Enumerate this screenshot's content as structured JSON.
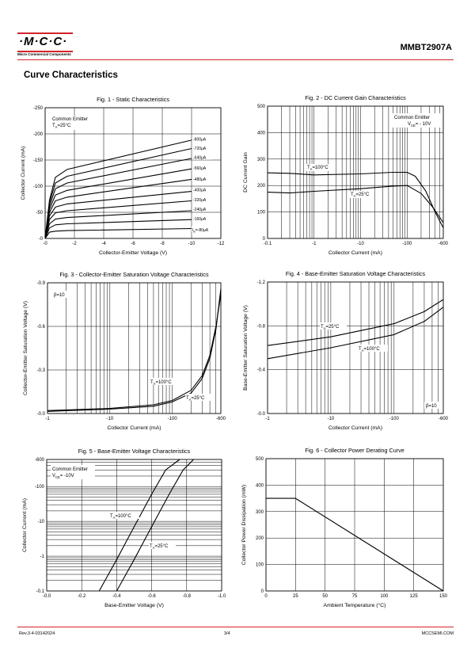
{
  "header": {
    "logo_text": "·M·C·C·",
    "logo_sub": "Micro Commercial Components",
    "part_number": "MMBT2907A",
    "brand_color": "#d2232a"
  },
  "section_title": "Curve Characteristics",
  "footer": {
    "rev": "Rev.3-4-03142024",
    "page": "3/4",
    "site": "MCCSEMI.COM"
  },
  "chart_data": [
    {
      "id": "fig1",
      "type": "line",
      "title": "Fig. 1 - Static Characteristics",
      "xlabel": "Collector-Emitter Voltage (V)",
      "ylabel": "Collector Current (mA)",
      "xlim": [
        0,
        -12
      ],
      "ylim": [
        0,
        -250
      ],
      "xticks": [
        "-0",
        "-2",
        "-4",
        "-6",
        "-8",
        "-10",
        "-12"
      ],
      "xtick_values": [
        0,
        -2,
        -4,
        -6,
        -8,
        -10,
        -12
      ],
      "yticks": [
        "-0",
        "-50",
        "-100",
        "-150",
        "-200",
        "-250"
      ],
      "ytick_values": [
        0,
        -50,
        -100,
        -150,
        -200,
        -250
      ],
      "annotations": [
        "Common Emitter",
        "T",
        "A",
        "=25°C"
      ],
      "series": [
        {
          "name": "I_B=-80μA",
          "x": [
            0,
            -0.3,
            -0.7,
            -1.5,
            -10
          ],
          "y": [
            0,
            -12,
            -14,
            -15,
            -19
          ]
        },
        {
          "name": "-160μA",
          "x": [
            0,
            -0.3,
            -0.7,
            -1.5,
            -10
          ],
          "y": [
            0,
            -20,
            -26,
            -28,
            -36
          ]
        },
        {
          "name": "-240μA",
          "x": [
            0,
            -0.3,
            -0.7,
            -1.5,
            -10
          ],
          "y": [
            0,
            -28,
            -37,
            -40,
            -53
          ]
        },
        {
          "name": "-320μA",
          "x": [
            0,
            -0.3,
            -0.7,
            -1.5,
            -10
          ],
          "y": [
            0,
            -36,
            -49,
            -53,
            -72
          ]
        },
        {
          "name": "-400μA",
          "x": [
            0,
            -0.3,
            -0.7,
            -1.5,
            -10
          ],
          "y": [
            0,
            -43,
            -60,
            -66,
            -90
          ]
        },
        {
          "name": "-480μA",
          "x": [
            0,
            -0.3,
            -0.7,
            -1.5,
            -10
          ],
          "y": [
            0,
            -50,
            -72,
            -79,
            -113
          ]
        },
        {
          "name": "-560μA",
          "x": [
            0,
            -0.3,
            -0.7,
            -1.5,
            -10
          ],
          "y": [
            0,
            -56,
            -83,
            -92,
            -133
          ]
        },
        {
          "name": "-640μA",
          "x": [
            0,
            -0.3,
            -0.7,
            -1.5,
            -10
          ],
          "y": [
            0,
            -62,
            -95,
            -106,
            -153
          ]
        },
        {
          "name": "-720μA",
          "x": [
            0,
            -0.3,
            -0.7,
            -1.5,
            -10
          ],
          "y": [
            0,
            -68,
            -106,
            -119,
            -172
          ]
        },
        {
          "name": "-800μA",
          "x": [
            0,
            -0.3,
            -0.7,
            -1.5,
            -10
          ],
          "y": [
            0,
            -73,
            -117,
            -132,
            -188
          ]
        }
      ],
      "legend_labels": [
        "-800μA",
        "-720μA",
        "-640μA",
        "-560μA",
        "-480μA",
        "-400μA",
        "-320μA",
        "-240μA",
        "-160μA",
        "I",
        "B",
        "=-80μA"
      ]
    },
    {
      "id": "fig2",
      "type": "line",
      "title": "Fig. 2 - DC Current Gain Characteristics",
      "xlabel": "Collector Current (mA)",
      "ylabel": "DC Current Gain",
      "xscale": "log",
      "xlim": [
        -0.1,
        -600
      ],
      "ylim": [
        0,
        500
      ],
      "xticks": [
        "-0.1",
        "-1",
        "-10",
        "-100",
        "-600"
      ],
      "xtick_values": [
        0.1,
        1,
        10,
        100,
        600
      ],
      "yticks": [
        "0",
        "100",
        "200",
        "300",
        "400",
        "500"
      ],
      "ytick_values": [
        0,
        100,
        200,
        300,
        400,
        500
      ],
      "annotations": [
        "Common Emitter",
        "V",
        "CE",
        "= - 10V"
      ],
      "series": [
        {
          "name": "T_A=100°C",
          "x": [
            0.1,
            0.3,
            1,
            10,
            50,
            100,
            150,
            250,
            400,
            600
          ],
          "y": [
            248,
            246,
            240,
            244,
            250,
            250,
            235,
            180,
            100,
            40
          ]
        },
        {
          "name": "T_A=25°C",
          "x": [
            0.1,
            0.3,
            1,
            10,
            50,
            100,
            200,
            350,
            600
          ],
          "y": [
            175,
            172,
            178,
            188,
            198,
            200,
            170,
            120,
            60
          ]
        }
      ],
      "series_labels": [
        [
          "T",
          "A",
          "=100°C"
        ],
        [
          "T",
          "A",
          "=25°C"
        ]
      ]
    },
    {
      "id": "fig3",
      "type": "line",
      "title": "Fig. 3 - Collector-Emitter Saturation Voltage Characteristics",
      "xlabel": "Collector Current (mA)",
      "ylabel": "Collector-Emitter Saturation Voltage (V)",
      "xscale": "log",
      "xlim": [
        -1,
        -600
      ],
      "ylim": [
        0,
        -0.9
      ],
      "xticks": [
        "-1",
        "-10",
        "-100",
        "-600"
      ],
      "xtick_values": [
        1,
        10,
        100,
        600
      ],
      "yticks": [
        "-0.0",
        "-0.3",
        "-0.6",
        "-0.9"
      ],
      "ytick_values": [
        0,
        -0.3,
        -0.6,
        -0.9
      ],
      "annotations": [
        "β=10"
      ],
      "series": [
        {
          "name": "T_A=100°C",
          "x": [
            1,
            10,
            50,
            100,
            200,
            300,
            400,
            500,
            600
          ],
          "y": [
            -0.02,
            -0.035,
            -0.06,
            -0.09,
            -0.16,
            -0.26,
            -0.4,
            -0.6,
            -0.82
          ]
        },
        {
          "name": "T_A=25°C",
          "x": [
            1,
            10,
            50,
            100,
            200,
            300,
            400,
            500,
            600
          ],
          "y": [
            -0.015,
            -0.03,
            -0.05,
            -0.08,
            -0.14,
            -0.24,
            -0.38,
            -0.58,
            -0.86
          ]
        }
      ],
      "series_labels": [
        [
          "T",
          "A",
          "=100°C"
        ],
        [
          "T",
          "A",
          "=25°C"
        ]
      ]
    },
    {
      "id": "fig4",
      "type": "line",
      "title": "Fig. 4 - Base-Emitter Saturation Voltage Characteristics",
      "xlabel": "Collector Current (mA)",
      "ylabel": "Base-Emitter Saturation Voltage (V)",
      "xscale": "log",
      "xlim": [
        -1,
        -600
      ],
      "ylim": [
        0,
        -1.2
      ],
      "xticks": [
        "-1",
        "-10",
        "-100",
        "-600"
      ],
      "xtick_values": [
        1,
        10,
        100,
        600
      ],
      "yticks": [
        "-0.0",
        "-0.4",
        "-0.8",
        "-1.2"
      ],
      "ytick_values": [
        0,
        -0.4,
        -0.8,
        -1.2
      ],
      "annotations": [
        "β=10"
      ],
      "series": [
        {
          "name": "T_A=25°C",
          "x": [
            1,
            10,
            100,
            300,
            600
          ],
          "y": [
            -0.62,
            -0.7,
            -0.82,
            -0.93,
            -1.04
          ]
        },
        {
          "name": "T_A=100°C",
          "x": [
            1,
            10,
            100,
            300,
            600
          ],
          "y": [
            -0.5,
            -0.6,
            -0.72,
            -0.84,
            -0.97
          ]
        }
      ],
      "series_labels": [
        [
          "T",
          "A",
          "=25°C"
        ],
        [
          "T",
          "A",
          "=100°C"
        ]
      ]
    },
    {
      "id": "fig5",
      "type": "line",
      "title": "Fig. 5 - Base-Emitter Voltage Characteristics",
      "xlabel": "Base-Emitter Voltage (V)",
      "ylabel": "Collector Current (mA)",
      "yscale": "log",
      "xlim": [
        0,
        -1.0
      ],
      "ylim": [
        -0.1,
        -600
      ],
      "xticks": [
        "-0.0",
        "-0.2",
        "-0.4",
        "-0.6",
        "-0.8",
        "-1.0"
      ],
      "xtick_values": [
        0,
        -0.2,
        -0.4,
        -0.6,
        -0.8,
        -1.0
      ],
      "yticks": [
        "-0.1",
        "-1",
        "-10",
        "-100",
        "-600"
      ],
      "ytick_values": [
        0.1,
        1,
        10,
        100,
        600
      ],
      "annotations": [
        "Common Emitter",
        "V",
        "CE",
        "= -10V"
      ],
      "series": [
        {
          "name": "T_A=100°C",
          "x": [
            -0.3,
            -0.4,
            -0.5,
            -0.6,
            -0.68,
            -0.76
          ],
          "y": [
            0.1,
            0.8,
            7,
            60,
            300,
            600
          ]
        },
        {
          "name": "T_A=25°C",
          "x": [
            -0.4,
            -0.5,
            -0.6,
            -0.7,
            -0.78,
            -0.84
          ],
          "y": [
            0.1,
            0.8,
            7,
            60,
            300,
            600
          ]
        }
      ],
      "series_labels": [
        [
          "T",
          "A",
          "=100°C"
        ],
        [
          "T",
          "A",
          "=25°C"
        ]
      ]
    },
    {
      "id": "fig6",
      "type": "line",
      "title": "Fig. 6 - Collector Power Derating Curve",
      "xlabel": "Ambient Temperature (°C)",
      "ylabel": "Collector Power Dissipation  (mW)",
      "xlim": [
        0,
        150
      ],
      "ylim": [
        0,
        500
      ],
      "xticks": [
        "0",
        "25",
        "50",
        "75",
        "100",
        "125",
        "150"
      ],
      "xtick_values": [
        0,
        25,
        50,
        75,
        100,
        125,
        150
      ],
      "yticks": [
        "0",
        "100",
        "200",
        "300",
        "400",
        "500"
      ],
      "ytick_values": [
        0,
        100,
        200,
        300,
        400,
        500
      ],
      "series": [
        {
          "name": "",
          "x": [
            0,
            25,
            150
          ],
          "y": [
            350,
            350,
            0
          ]
        }
      ]
    }
  ]
}
